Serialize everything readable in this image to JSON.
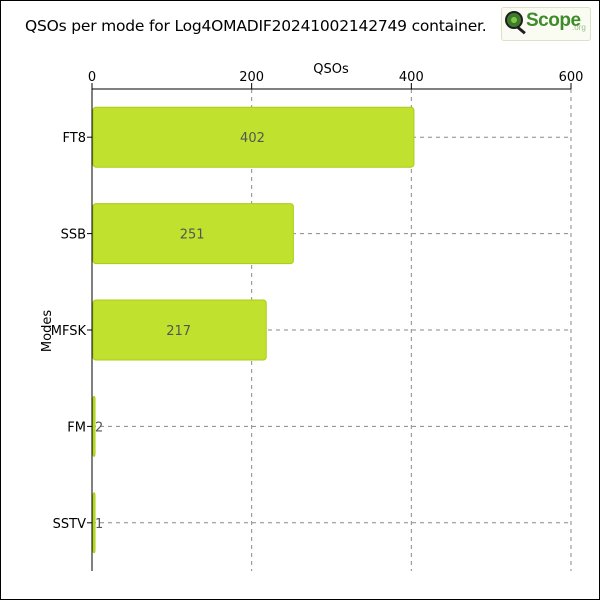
{
  "title": "QSOs per mode for Log4OMADIF20241002142749 container.",
  "logo": {
    "text": "Scope",
    "suffix": ".org",
    "icon": "magnifier-q-icon"
  },
  "colors": {
    "bar": "#c0e22e",
    "bar_stroke": "#a9cc18",
    "grid": "#8a8a8a",
    "text": "#000000",
    "value_text": "#555555"
  },
  "chart_data": {
    "type": "bar",
    "orientation": "horizontal",
    "categories": [
      "FT8",
      "SSB",
      "MFSK",
      "FM",
      "SSTV"
    ],
    "values": [
      402,
      251,
      217,
      2,
      1
    ],
    "value_labels": [
      "402",
      "251",
      "217",
      "2",
      "1"
    ],
    "xlabel": "QSOs",
    "ylabel": "Modes",
    "xlim": [
      0,
      600
    ],
    "xticks": [
      "0",
      "200",
      "400",
      "600"
    ],
    "x_axis_position": "top",
    "grid": true
  }
}
